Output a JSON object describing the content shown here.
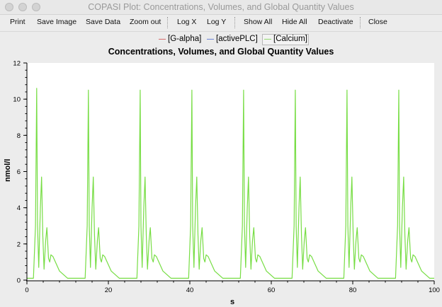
{
  "window": {
    "title": "COPASI Plot: Concentrations, Volumes, and Global Quantity Values"
  },
  "toolbar": {
    "print": "Print",
    "save_image": "Save Image",
    "save_data": "Save Data",
    "zoom_out": "Zoom out",
    "log_x": "Log X",
    "log_y": "Log Y",
    "show_all": "Show All",
    "hide_all": "Hide All",
    "deactivate": "Deactivate",
    "close": "Close"
  },
  "colors": {
    "galpha": "#cc3333",
    "activeplc": "#3355cc",
    "calcium": "#77dd44"
  },
  "chart_data": {
    "type": "line",
    "title": "Concentrations, Volumes, and Global Quantity Values",
    "xlabel": "s",
    "ylabel": "nmol/l",
    "xlim": [
      0,
      100
    ],
    "ylim": [
      0,
      12
    ],
    "xticks": [
      0,
      20,
      40,
      60,
      80,
      100
    ],
    "yticks": [
      0,
      2,
      4,
      6,
      8,
      10,
      12
    ],
    "grid": false,
    "legend_position": "top",
    "series": [
      {
        "name": "[G-alpha]",
        "color": "#cc3333",
        "visible": false,
        "points": []
      },
      {
        "name": "[activePLC]",
        "color": "#3355cc",
        "visible": false,
        "points": []
      },
      {
        "name": "[Calcium]",
        "color": "#77dd44",
        "visible": true,
        "period": 12.7,
        "first_spike": 2.4,
        "points": [
          [
            0,
            0.1
          ],
          [
            1.6,
            0.1
          ],
          [
            2.1,
            3.0
          ],
          [
            2.4,
            10.6
          ],
          [
            2.6,
            3.0
          ],
          [
            2.9,
            0.7
          ],
          [
            3.3,
            4.0
          ],
          [
            3.6,
            5.7
          ],
          [
            3.9,
            2.5
          ],
          [
            4.2,
            0.6
          ],
          [
            4.6,
            2.2
          ],
          [
            4.9,
            2.9
          ],
          [
            5.3,
            1.2
          ],
          [
            5.6,
            1.0
          ],
          [
            5.9,
            1.4
          ],
          [
            6.4,
            1.3
          ],
          [
            8.0,
            0.5
          ],
          [
            10.0,
            0.1
          ],
          [
            14.3,
            0.1
          ],
          [
            14.8,
            3.0
          ],
          [
            15.1,
            10.5
          ],
          [
            15.3,
            3.0
          ],
          [
            15.6,
            0.7
          ],
          [
            16.0,
            4.0
          ],
          [
            16.3,
            5.7
          ],
          [
            16.6,
            2.5
          ],
          [
            16.9,
            0.6
          ],
          [
            17.3,
            2.2
          ],
          [
            17.6,
            2.9
          ],
          [
            18.0,
            1.2
          ],
          [
            18.3,
            1.0
          ],
          [
            18.6,
            1.4
          ],
          [
            19.1,
            1.3
          ],
          [
            20.7,
            0.5
          ],
          [
            22.7,
            0.1
          ],
          [
            27.0,
            0.1
          ],
          [
            27.5,
            3.0
          ],
          [
            27.8,
            10.5
          ],
          [
            28.0,
            3.0
          ],
          [
            28.3,
            0.7
          ],
          [
            28.7,
            4.0
          ],
          [
            29.0,
            5.7
          ],
          [
            29.3,
            2.5
          ],
          [
            29.6,
            0.6
          ],
          [
            30.0,
            2.2
          ],
          [
            30.3,
            2.9
          ],
          [
            30.7,
            1.2
          ],
          [
            31.0,
            1.0
          ],
          [
            31.3,
            1.4
          ],
          [
            31.8,
            1.3
          ],
          [
            33.4,
            0.5
          ],
          [
            35.4,
            0.1
          ],
          [
            39.7,
            0.1
          ],
          [
            40.2,
            3.0
          ],
          [
            40.5,
            10.5
          ],
          [
            40.7,
            3.0
          ],
          [
            41.0,
            0.7
          ],
          [
            41.4,
            4.0
          ],
          [
            41.7,
            5.7
          ],
          [
            42.0,
            2.5
          ],
          [
            42.3,
            0.6
          ],
          [
            42.7,
            2.2
          ],
          [
            43.0,
            2.9
          ],
          [
            43.4,
            1.2
          ],
          [
            43.7,
            1.0
          ],
          [
            44.0,
            1.4
          ],
          [
            44.5,
            1.3
          ],
          [
            46.1,
            0.5
          ],
          [
            48.1,
            0.1
          ],
          [
            52.4,
            0.1
          ],
          [
            52.9,
            3.0
          ],
          [
            53.2,
            10.5
          ],
          [
            53.4,
            3.0
          ],
          [
            53.7,
            0.7
          ],
          [
            54.1,
            4.0
          ],
          [
            54.4,
            5.7
          ],
          [
            54.7,
            2.5
          ],
          [
            55.0,
            0.6
          ],
          [
            55.4,
            2.2
          ],
          [
            55.7,
            2.9
          ],
          [
            56.1,
            1.2
          ],
          [
            56.4,
            1.0
          ],
          [
            56.7,
            1.4
          ],
          [
            57.2,
            1.3
          ],
          [
            58.8,
            0.5
          ],
          [
            60.8,
            0.1
          ],
          [
            65.1,
            0.1
          ],
          [
            65.6,
            3.0
          ],
          [
            65.9,
            10.5
          ],
          [
            66.1,
            3.0
          ],
          [
            66.4,
            0.7
          ],
          [
            66.8,
            4.0
          ],
          [
            67.1,
            5.7
          ],
          [
            67.4,
            2.5
          ],
          [
            67.7,
            0.6
          ],
          [
            68.1,
            2.2
          ],
          [
            68.4,
            2.9
          ],
          [
            68.8,
            1.2
          ],
          [
            69.1,
            1.0
          ],
          [
            69.4,
            1.4
          ],
          [
            69.9,
            1.3
          ],
          [
            71.5,
            0.5
          ],
          [
            73.5,
            0.1
          ],
          [
            77.8,
            0.1
          ],
          [
            78.3,
            3.0
          ],
          [
            78.6,
            10.5
          ],
          [
            78.8,
            3.0
          ],
          [
            79.1,
            0.7
          ],
          [
            79.5,
            4.0
          ],
          [
            79.8,
            5.7
          ],
          [
            80.1,
            2.5
          ],
          [
            80.4,
            0.6
          ],
          [
            80.8,
            2.2
          ],
          [
            81.1,
            2.9
          ],
          [
            81.5,
            1.2
          ],
          [
            81.8,
            1.0
          ],
          [
            82.1,
            1.4
          ],
          [
            82.6,
            1.3
          ],
          [
            84.2,
            0.5
          ],
          [
            86.2,
            0.1
          ],
          [
            90.5,
            0.1
          ],
          [
            91.0,
            3.0
          ],
          [
            91.3,
            10.5
          ],
          [
            91.5,
            3.0
          ],
          [
            91.8,
            0.7
          ],
          [
            92.2,
            4.0
          ],
          [
            92.5,
            5.7
          ],
          [
            92.8,
            2.5
          ],
          [
            93.1,
            0.6
          ],
          [
            93.5,
            2.2
          ],
          [
            93.8,
            2.9
          ],
          [
            94.2,
            1.2
          ],
          [
            94.5,
            1.0
          ],
          [
            94.8,
            1.4
          ],
          [
            95.3,
            1.3
          ],
          [
            96.9,
            0.5
          ],
          [
            98.9,
            0.1
          ],
          [
            100,
            0.1
          ]
        ]
      }
    ]
  }
}
